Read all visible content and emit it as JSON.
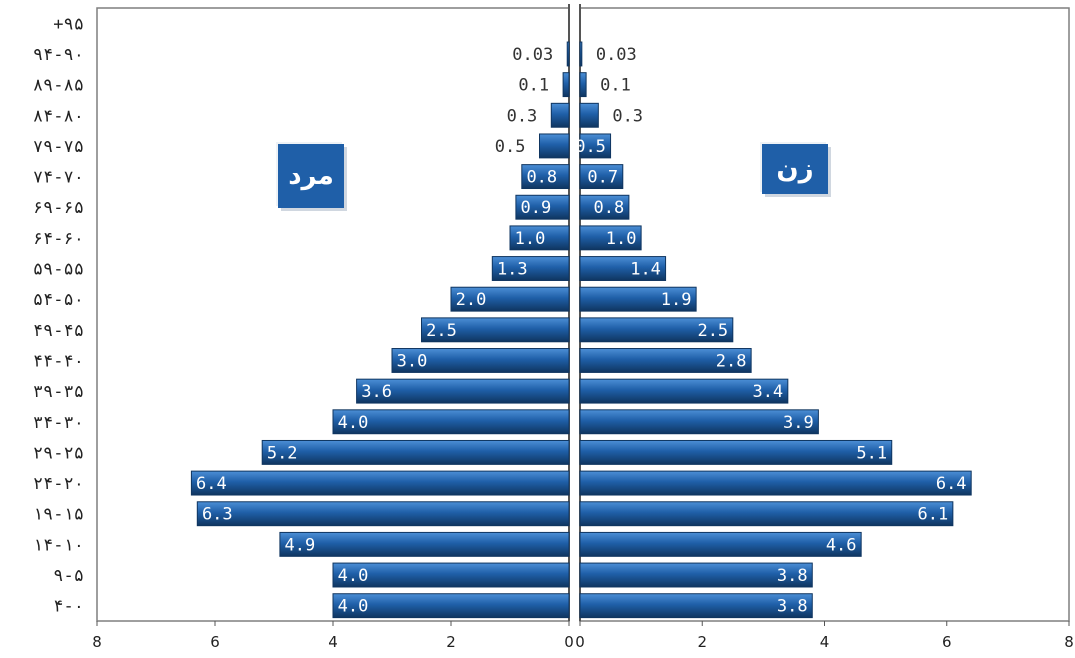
{
  "chart_data": {
    "type": "bar",
    "orientation": "horizontal",
    "layout": "population-pyramid",
    "categories": [
      "۴-۰",
      "۹-۵",
      "۱۴-۱۰",
      "۱۹-۱۵",
      "۲۴-۲۰",
      "۲۹-۲۵",
      "۳۴-۳۰",
      "۳۹-۳۵",
      "۴۴-۴۰",
      "۴۹-۴۵",
      "۵۴-۵۰",
      "۵۹-۵۵",
      "۶۴-۶۰",
      "۶۹-۶۵",
      "۷۴-۷۰",
      "۷۹-۷۵",
      "۸۴-۸۰",
      "۸۹-۸۵",
      "۹۴-۹۰",
      "+۹۵"
    ],
    "series": [
      {
        "name": "مرد",
        "side": "left",
        "values": [
          4.0,
          4.0,
          4.9,
          6.3,
          6.4,
          5.2,
          4.0,
          3.6,
          3.0,
          2.5,
          2.0,
          1.3,
          1.0,
          0.9,
          0.8,
          0.5,
          0.3,
          0.1,
          0.03,
          0
        ],
        "labels": [
          "4.0",
          "4.0",
          "4.9",
          "6.3",
          "6.4",
          "5.2",
          "4.0",
          "3.6",
          "3.0",
          "2.5",
          "2.0",
          "1.3",
          "1.0",
          "0.9",
          "0.8",
          "0.5",
          "0.3",
          "0.1",
          "0.03",
          ""
        ]
      },
      {
        "name": "زن",
        "side": "right",
        "values": [
          3.8,
          3.8,
          4.6,
          6.1,
          6.4,
          5.1,
          3.9,
          3.4,
          2.8,
          2.5,
          1.9,
          1.4,
          1.0,
          0.8,
          0.7,
          0.5,
          0.3,
          0.1,
          0.03,
          0
        ],
        "labels": [
          "3.8",
          "3.8",
          "4.6",
          "6.1",
          "6.4",
          "5.1",
          "3.9",
          "3.4",
          "2.8",
          "2.5",
          "1.9",
          "1.4",
          "1.0",
          "0.8",
          "0.7",
          "0.5",
          "0.3",
          "0.1",
          "0.03",
          ""
        ]
      }
    ],
    "xlim": [
      0,
      8
    ],
    "xticks": [
      "0",
      "2",
      "4",
      "6",
      "8"
    ],
    "bar_color": "#1f5fa8",
    "bar_highlight": "#4c8fd6",
    "bar_shadow": "#0f3560",
    "label_color": "#ffffff",
    "outside_label_color": "#333333",
    "grid": false,
    "legend": "none"
  },
  "labels": {
    "male": "مرد",
    "female": "زن"
  }
}
